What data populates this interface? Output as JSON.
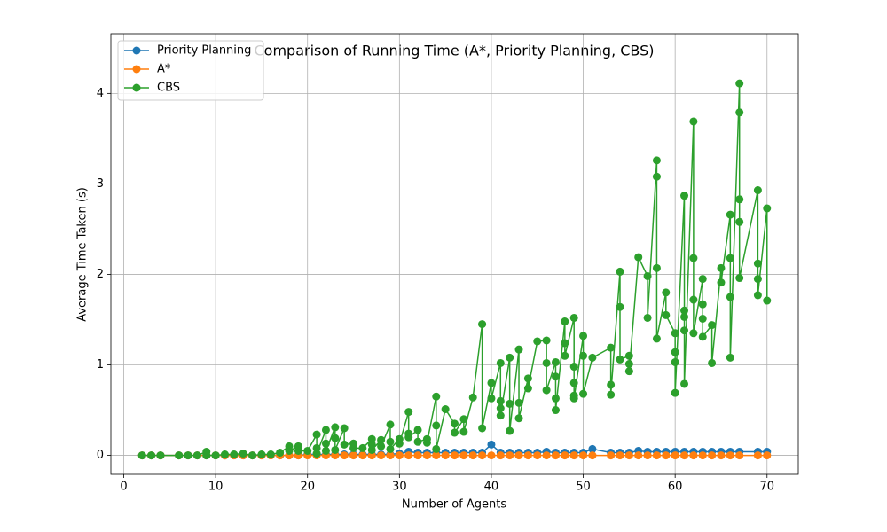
{
  "chart_data": {
    "type": "line",
    "title": "Comparison of Running Time (A*, Priority Planning, CBS)",
    "xlabel": "Number of Agents",
    "ylabel": "Average Time Taken (s)",
    "xlim": [
      -1.4,
      73.4
    ],
    "ylim": [
      -0.21,
      4.66
    ],
    "xticks": [
      0,
      10,
      20,
      30,
      40,
      50,
      60,
      70
    ],
    "yticks": [
      0,
      1,
      2,
      3,
      4
    ],
    "grid": true,
    "legend": "upper-left",
    "series": [
      {
        "name": "Priority Planning",
        "color": "#1f77b4",
        "x": [
          2,
          3,
          4,
          6,
          7,
          8,
          9,
          10,
          11,
          12,
          13,
          14,
          15,
          16,
          17,
          18,
          19,
          20,
          21,
          22,
          23,
          24,
          25,
          26,
          27,
          28,
          29,
          30,
          31,
          32,
          33,
          34,
          35,
          36,
          37,
          38,
          39,
          40,
          41,
          42,
          43,
          44,
          45,
          46,
          47,
          48,
          49,
          50,
          51,
          53,
          54,
          55,
          56,
          57,
          58,
          59,
          60,
          61,
          62,
          63,
          64,
          65,
          66,
          67,
          69,
          70
        ],
        "values": [
          0,
          0,
          0,
          0,
          0,
          0,
          0,
          0,
          0,
          0,
          0,
          0,
          0,
          0,
          0,
          0,
          0,
          0.01,
          0.01,
          0.01,
          0.01,
          0.01,
          0.01,
          0.01,
          0.01,
          0.01,
          0.01,
          0.02,
          0.04,
          0.03,
          0.03,
          0.03,
          0.03,
          0.03,
          0.03,
          0.03,
          0.03,
          0.12,
          0.03,
          0.03,
          0.03,
          0.03,
          0.03,
          0.04,
          0.03,
          0.03,
          0.03,
          0.03,
          0.07,
          0.03,
          0.03,
          0.03,
          0.05,
          0.04,
          0.04,
          0.04,
          0.04,
          0.04,
          0.04,
          0.04,
          0.04,
          0.04,
          0.04,
          0.04,
          0.04,
          0.04
        ]
      },
      {
        "name": "A*",
        "color": "#ff7f0e",
        "x": [
          2,
          3,
          4,
          6,
          7,
          8,
          9,
          10,
          11,
          12,
          13,
          14,
          15,
          16,
          17,
          18,
          19,
          20,
          21,
          22,
          23,
          24,
          25,
          26,
          27,
          28,
          29,
          30,
          31,
          32,
          33,
          34,
          35,
          36,
          37,
          38,
          39,
          40,
          41,
          42,
          43,
          44,
          45,
          46,
          47,
          48,
          49,
          50,
          51,
          53,
          54,
          55,
          56,
          57,
          58,
          59,
          60,
          61,
          62,
          63,
          64,
          65,
          66,
          67,
          69,
          70
        ],
        "values": [
          0,
          0,
          0,
          0,
          0,
          0,
          0,
          0,
          0,
          0,
          0,
          0,
          0,
          0,
          0,
          0,
          0,
          0,
          0,
          0,
          0,
          0,
          0,
          0,
          0,
          0,
          0,
          0,
          0,
          0,
          0,
          0,
          0,
          0,
          0,
          0,
          0,
          0,
          0,
          0,
          0,
          0,
          0,
          0,
          0,
          0,
          0,
          0,
          0,
          0,
          0,
          0,
          0,
          0,
          0,
          0,
          0,
          0,
          0,
          0,
          0,
          0,
          0,
          0,
          0,
          0
        ]
      },
      {
        "name": "CBS",
        "color": "#2ca02c",
        "x": [
          2,
          3,
          4,
          6,
          7,
          8,
          9,
          9,
          10,
          11,
          12,
          13,
          14,
          15,
          16,
          17,
          18,
          18,
          19,
          19,
          20,
          21,
          21,
          21,
          22,
          22,
          22,
          23,
          23,
          23,
          24,
          24,
          25,
          25,
          26,
          27,
          27,
          27,
          28,
          28,
          29,
          29,
          29,
          30,
          30,
          31,
          31,
          31,
          32,
          32,
          33,
          33,
          34,
          34,
          34,
          35,
          36,
          36,
          37,
          37,
          38,
          39,
          39,
          40,
          40,
          41,
          41,
          41,
          41,
          42,
          42,
          42,
          43,
          43,
          43,
          44,
          44,
          45,
          46,
          46,
          46,
          47,
          47,
          47,
          47,
          48,
          48,
          48,
          49,
          49,
          49,
          49,
          49,
          50,
          50,
          50,
          51,
          53,
          53,
          53,
          54,
          54,
          54,
          55,
          55,
          55,
          56,
          57,
          57,
          58,
          58,
          58,
          58,
          59,
          59,
          60,
          60,
          60,
          60,
          61,
          61,
          61,
          61,
          61,
          62,
          62,
          62,
          62,
          63,
          63,
          63,
          63,
          64,
          64,
          65,
          65,
          66,
          66,
          66,
          66,
          67,
          67,
          67,
          67,
          67,
          69,
          69,
          69,
          69,
          70,
          70
        ],
        "values": [
          0,
          0,
          0,
          0,
          0,
          0,
          0.04,
          0,
          0,
          0.01,
          0.01,
          0.02,
          0,
          0.01,
          0.01,
          0.03,
          0.1,
          0.05,
          0.1,
          0.05,
          0.05,
          0.23,
          0.08,
          0.02,
          0.28,
          0.13,
          0.05,
          0.31,
          0.19,
          0.06,
          0.3,
          0.12,
          0.13,
          0.08,
          0.08,
          0.18,
          0.12,
          0.06,
          0.17,
          0.1,
          0.34,
          0.15,
          0.07,
          0.18,
          0.13,
          0.48,
          0.24,
          0.2,
          0.28,
          0.15,
          0.18,
          0.14,
          0.65,
          0.33,
          0.07,
          0.51,
          0.35,
          0.25,
          0.4,
          0.26,
          0.64,
          1.45,
          0.3,
          0.8,
          0.63,
          1.02,
          0.6,
          0.52,
          0.44,
          1.08,
          0.57,
          0.27,
          1.17,
          0.58,
          0.41,
          0.85,
          0.74,
          1.26,
          1.27,
          1.02,
          0.72,
          1.03,
          0.87,
          0.63,
          0.5,
          1.48,
          1.24,
          1.1,
          1.52,
          0.98,
          0.8,
          0.66,
          0.63,
          1.32,
          1.1,
          0.68,
          1.08,
          1.19,
          0.78,
          0.67,
          2.03,
          1.64,
          1.06,
          1.1,
          1.01,
          0.93,
          2.19,
          1.98,
          1.52,
          3.26,
          3.08,
          2.07,
          1.29,
          1.8,
          1.55,
          1.35,
          1.14,
          1.03,
          0.69,
          2.87,
          1.6,
          1.53,
          1.38,
          0.79,
          3.69,
          2.18,
          1.72,
          1.35,
          1.95,
          1.67,
          1.51,
          1.31,
          1.44,
          1.02,
          2.07,
          1.91,
          2.66,
          2.18,
          1.75,
          1.08,
          4.11,
          3.79,
          2.83,
          2.58,
          1.96,
          2.93,
          2.12,
          1.95,
          1.77,
          2.73,
          1.71
        ]
      }
    ]
  }
}
